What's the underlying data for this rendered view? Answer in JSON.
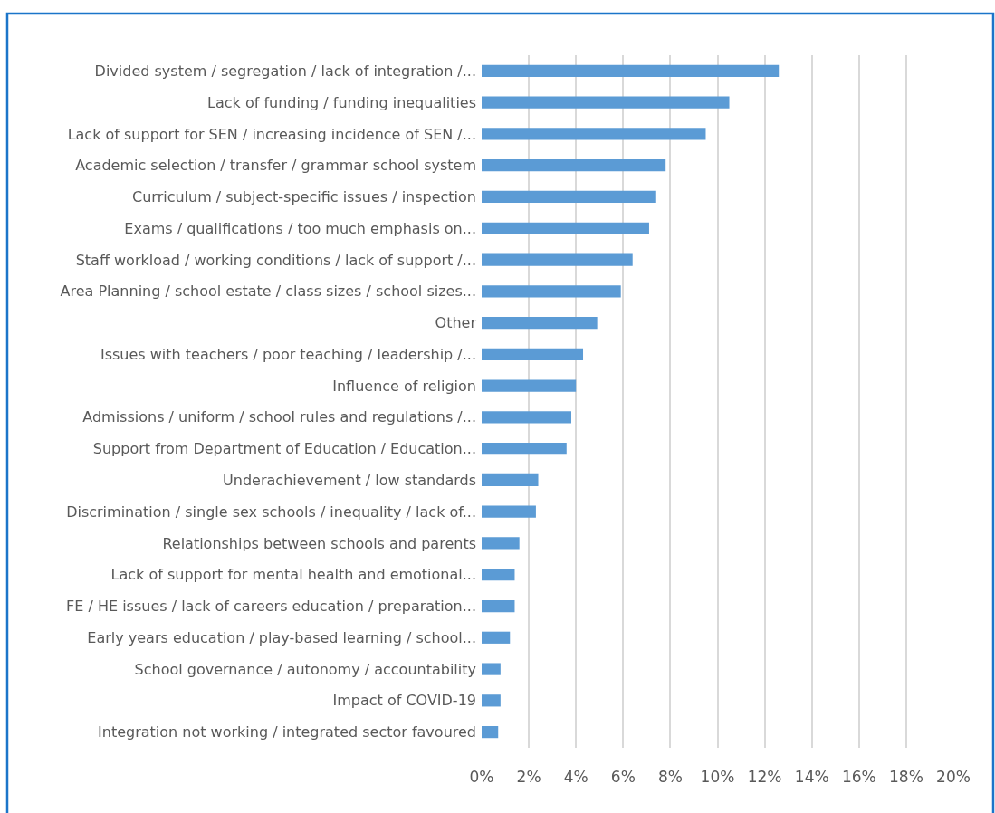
{
  "chart_data": {
    "type": "bar",
    "orientation": "horizontal",
    "categories": [
      "Divided system / segregation / lack of integration /...",
      "Lack of funding / funding inequalities",
      "Lack of support for SEN / increasing incidence of SEN /...",
      "Academic selection / transfer / grammar school system",
      "Curriculum / subject-specific issues / inspection",
      "Exams / qualifications / too much emphasis on...",
      "Staff workload / working conditions / lack of support /...",
      "Area Planning / school estate / class sizes / school sizes...",
      "Other",
      "Issues with teachers / poor teaching / leadership /...",
      "Influence of religion",
      "Admissions / uniform / school rules and regulations /...",
      "Support from Department of Education / Education...",
      "Underachievement / low standards",
      "Discrimination / single sex schools / inequality / lack of...",
      "Relationships between schools and parents",
      "Lack of support for mental health and emotional...",
      "FE / HE issues / lack of careers education / preparation...",
      "Early years education / play-based learning / school...",
      "School governance / autonomy / accountability",
      "Impact of COVID-19",
      "Integration not working / integrated sector favoured"
    ],
    "values": [
      12.6,
      10.5,
      9.5,
      7.8,
      7.4,
      7.1,
      6.4,
      5.9,
      4.9,
      4.3,
      4.0,
      3.8,
      3.6,
      2.4,
      2.3,
      1.6,
      1.4,
      1.4,
      1.2,
      0.8,
      0.8,
      0.7
    ],
    "color": "#5b9bd5",
    "xlim": [
      0,
      20
    ],
    "xticks": [
      {
        "value": 0,
        "label": "0%"
      },
      {
        "value": 2,
        "label": "2%"
      },
      {
        "value": 4,
        "label": "4%"
      },
      {
        "value": 6,
        "label": "6%"
      },
      {
        "value": 8,
        "label": "8%"
      },
      {
        "value": 10,
        "label": "10%"
      },
      {
        "value": 12,
        "label": "12%"
      },
      {
        "value": 14,
        "label": "14%"
      },
      {
        "value": 16,
        "label": "16%"
      },
      {
        "value": 18,
        "label": "18%"
      },
      {
        "value": 20,
        "label": "20%"
      }
    ],
    "grid": "x"
  }
}
